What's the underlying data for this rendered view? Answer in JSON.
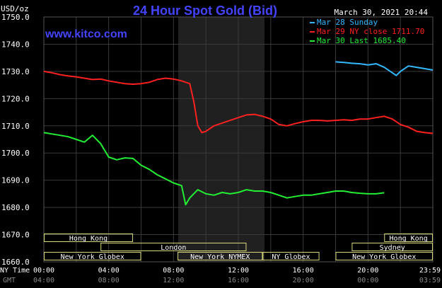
{
  "header": {
    "title": "24 Hour Spot Gold (Bid)",
    "unit": "USD/oz",
    "timestamp": "March 30, 2021 20:44",
    "website": "www.kitco.com"
  },
  "legend": [
    {
      "label": "Mar 28 Sunday",
      "color": "#33b8ff"
    },
    {
      "label": "Mar 29 NY close 1711.70",
      "color": "#ff2020"
    },
    {
      "label": "Mar 30 Last 1685.40",
      "color": "#22ee33"
    }
  ],
  "bottom_axis": {
    "ny_time_label": "NY Time",
    "gmt_label": "GMT",
    "ny_ticks": [
      "00:00",
      "04:00",
      "08:00",
      "12:00",
      "16:00",
      "20:00",
      "23:59"
    ],
    "gmt_ticks": [
      "04:00",
      "08:00",
      "12:00",
      "16:00",
      "20:00",
      "00:00",
      "03:59"
    ]
  },
  "sessions": [
    {
      "label": "Hong Kong",
      "row": 0,
      "start": 0,
      "end": 5.5
    },
    {
      "label": "Hong Kong",
      "row": 0,
      "start": 21,
      "end": 24
    },
    {
      "label": "London",
      "row": 1,
      "start": 3.5,
      "end": 12.5
    },
    {
      "label": "Sydney",
      "row": 1,
      "start": 19,
      "end": 24
    },
    {
      "label": "New York Globex",
      "row": 2,
      "start": 0,
      "end": 6
    },
    {
      "label": "New York NYMEX",
      "row": 2,
      "start": 8.25,
      "end": 13.5
    },
    {
      "label": "NY Globex",
      "row": 2,
      "start": 13.5,
      "end": 17
    },
    {
      "label": "New York Globex",
      "row": 2,
      "start": 18,
      "end": 24
    }
  ],
  "chart_data": {
    "type": "line",
    "title": "24 Hour Spot Gold (Bid)",
    "ylabel": "USD/oz",
    "ylim": [
      1660,
      1750
    ],
    "xlim": [
      0,
      24
    ],
    "y_ticks": [
      "1660.0",
      "1670.0",
      "1680.0",
      "1690.0",
      "1700.0",
      "1710.0",
      "1720.0",
      "1730.0",
      "1740.0",
      "1750.0"
    ],
    "shaded_region": [
      8.25,
      13.5
    ],
    "grid": true,
    "series": [
      {
        "name": "Mar 28 Sunday",
        "color": "#33b8ff",
        "x": [
          18,
          18.5,
          19,
          19.5,
          20,
          20.5,
          21,
          21.5,
          21.75,
          22,
          22.5,
          23,
          23.5,
          24
        ],
        "y": [
          1733.5,
          1733.3,
          1733.0,
          1732.8,
          1732.4,
          1732.8,
          1731.5,
          1729.5,
          1728.5,
          1730.0,
          1732.0,
          1731.5,
          1731.0,
          1730.5
        ]
      },
      {
        "name": "Mar 29 NY close 1711.70",
        "color": "#ff2020",
        "x": [
          0,
          0.5,
          1,
          1.5,
          2,
          2.5,
          3,
          3.5,
          4,
          4.5,
          5,
          5.5,
          6,
          6.5,
          7,
          7.5,
          8,
          8.5,
          9,
          9.25,
          9.5,
          9.75,
          10,
          10.5,
          11,
          11.5,
          12,
          12.5,
          13,
          13.5,
          14,
          14.5,
          15,
          15.5,
          16,
          16.5,
          17,
          17.5,
          18,
          18.5,
          19,
          19.5,
          20,
          20.5,
          21,
          21.5,
          22,
          22.5,
          23,
          23.5,
          24
        ],
        "y": [
          1730.0,
          1729.5,
          1728.8,
          1728.3,
          1728.0,
          1727.5,
          1727.0,
          1727.2,
          1726.5,
          1726.0,
          1725.5,
          1725.3,
          1725.5,
          1726.0,
          1727.0,
          1727.5,
          1727.2,
          1726.5,
          1725.5,
          1719.0,
          1710.0,
          1707.5,
          1708.0,
          1710.0,
          1711.0,
          1712.0,
          1713.0,
          1714.0,
          1714.2,
          1713.5,
          1712.5,
          1710.5,
          1710.0,
          1710.8,
          1711.5,
          1712.0,
          1712.0,
          1711.8,
          1712.0,
          1712.2,
          1712.0,
          1712.5,
          1712.5,
          1713.0,
          1713.5,
          1712.5,
          1710.5,
          1709.5,
          1708.0,
          1707.5,
          1707.2
        ]
      },
      {
        "name": "Mar 30 Last 1685.40",
        "color": "#22ee33",
        "x": [
          0,
          0.5,
          1,
          1.5,
          2,
          2.5,
          3,
          3.5,
          4,
          4.5,
          5,
          5.5,
          6,
          6.5,
          7,
          7.5,
          8,
          8.5,
          8.75,
          9,
          9.5,
          10,
          10.5,
          11,
          11.5,
          12,
          12.5,
          13,
          13.5,
          14,
          14.5,
          15,
          15.5,
          16,
          16.5,
          17,
          17.5,
          18,
          18.5,
          19,
          19.5,
          20,
          20.5,
          21
        ],
        "y": [
          1707.5,
          1707.0,
          1706.5,
          1706.0,
          1705.0,
          1704.0,
          1706.5,
          1703.5,
          1698.5,
          1697.5,
          1698.2,
          1698.0,
          1695.5,
          1694.0,
          1692.0,
          1690.5,
          1689.0,
          1688.0,
          1681.0,
          1683.5,
          1686.5,
          1685.0,
          1684.5,
          1685.5,
          1685.0,
          1685.5,
          1686.5,
          1686.0,
          1686.0,
          1685.5,
          1684.5,
          1683.5,
          1684.0,
          1684.5,
          1684.5,
          1685.0,
          1685.5,
          1686.0,
          1686.0,
          1685.5,
          1685.2,
          1685.0,
          1685.0,
          1685.4
        ]
      }
    ]
  }
}
